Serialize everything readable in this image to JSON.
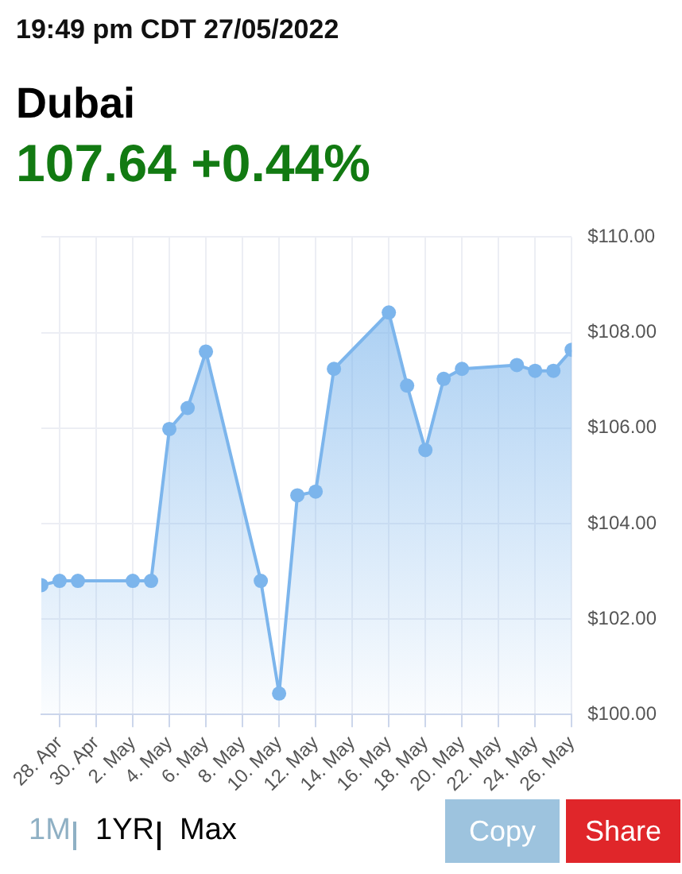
{
  "chart_data": {
    "type": "area",
    "title": "Dubai",
    "subtitle": "107.64 +0.44%",
    "annotations": [
      "19:49 pm CDT 27/05/2022",
      "1M",
      "1YR",
      "Max",
      "Copy",
      "Share"
    ],
    "x": [
      "2022-04-27",
      "2022-04-28",
      "2022-04-29",
      "2022-05-02",
      "2022-05-03",
      "2022-05-04",
      "2022-05-05",
      "2022-05-06",
      "2022-05-09",
      "2022-05-10",
      "2022-05-11",
      "2022-05-12",
      "2022-05-13",
      "2022-05-16",
      "2022-05-17",
      "2022-05-18",
      "2022-05-19",
      "2022-05-20",
      "2022-05-23",
      "2022-05-24",
      "2022-05-25",
      "2022-05-26"
    ],
    "series": [
      {
        "color": "#7cb5ec",
        "values": [
          102.71,
          102.8,
          102.8,
          102.8,
          102.8,
          105.98,
          106.42,
          107.6,
          102.8,
          100.44,
          104.59,
          104.67,
          107.24,
          108.42,
          106.89,
          105.54,
          107.03,
          107.24,
          107.32,
          107.2,
          107.2,
          107.64
        ]
      }
    ],
    "xlim": [
      "2022-04-27",
      "2022-05-26"
    ],
    "xticks": [
      {
        "value": "2022-04-28",
        "label": "28. Apr"
      },
      {
        "value": "2022-04-30",
        "label": "30. Apr"
      },
      {
        "value": "2022-05-02",
        "label": "2. May"
      },
      {
        "value": "2022-05-04",
        "label": "4. May"
      },
      {
        "value": "2022-05-06",
        "label": "6. May"
      },
      {
        "value": "2022-05-08",
        "label": "8. May"
      },
      {
        "value": "2022-05-10",
        "label": "10. May"
      },
      {
        "value": "2022-05-12",
        "label": "12. May"
      },
      {
        "value": "2022-05-14",
        "label": "14. May"
      },
      {
        "value": "2022-05-16",
        "label": "16. May"
      },
      {
        "value": "2022-05-18",
        "label": "18. May"
      },
      {
        "value": "2022-05-20",
        "label": "20. May"
      },
      {
        "value": "2022-05-22",
        "label": "22. May"
      },
      {
        "value": "2022-05-24",
        "label": "24. May"
      },
      {
        "value": "2022-05-26",
        "label": "26. May"
      }
    ],
    "ylim": [
      100,
      110
    ],
    "yticks": [
      {
        "value": 100,
        "label": "$100.00"
      },
      {
        "value": 102,
        "label": "$102.00"
      },
      {
        "value": 104,
        "label": "$104.00"
      },
      {
        "value": 106,
        "label": "$106.00"
      },
      {
        "value": 108,
        "label": "$108.00"
      },
      {
        "value": 110,
        "label": "$110.00"
      }
    ],
    "grid": true,
    "legend": false,
    "marker": "circle",
    "line_style": "solid"
  }
}
